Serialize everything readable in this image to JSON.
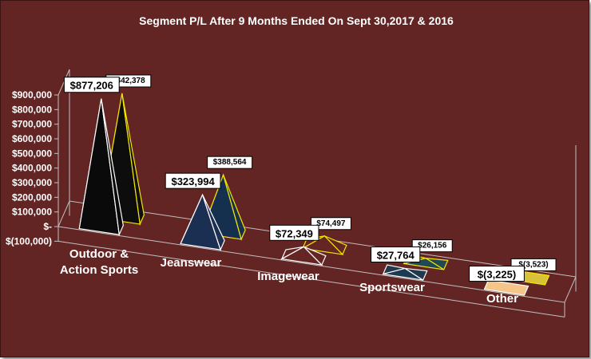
{
  "chart_data": {
    "type": "bar",
    "shape": "3d-pyramid",
    "title": "Segment P/L After 9 Months Ended On Sept 30,2017 & 2016",
    "categories": [
      [
        "Outdoor &",
        "Action Sports"
      ],
      [
        "Jeanswear"
      ],
      [
        "Imagewear"
      ],
      [
        "Sportswear"
      ],
      [
        "Other"
      ]
    ],
    "series": [
      {
        "values": [
          877206,
          323994,
          72349,
          27764,
          -3225
        ],
        "labels": [
          "$877,206",
          "$323,994",
          "$72,349",
          "$27,764",
          "$(3,225)"
        ],
        "colors": [
          "#0a0a0a",
          "#1b2f52",
          "#652523",
          "#1c3a52",
          "#f5c58a"
        ],
        "edge_colors": [
          "#ffffff",
          "#ffffff",
          "#ffffff",
          "#ffffff",
          "#ffffff"
        ]
      },
      {
        "values": [
          842378,
          388564,
          74497,
          26156,
          -3523
        ],
        "labels": [
          "$842,378",
          "$388,564",
          "$74,497",
          "$26,156",
          "$(3,523)"
        ],
        "colors": [
          "#0d0d0d",
          "#15304f",
          "#652523",
          "#1f4a55",
          "#d8c23a"
        ],
        "edge_colors": [
          "#f2e600",
          "#f2e600",
          "#f2e600",
          "#f2e600",
          "#f2e600"
        ]
      }
    ],
    "yaxis": {
      "min": -100000,
      "max": 900000,
      "step": 100000,
      "tick_labels": [
        "$(100,000)",
        "$-",
        "$100,000",
        "$200,000",
        "$300,000",
        "$400,000",
        "$500,000",
        "$600,000",
        "$700,000",
        "$800,000",
        "$900,000"
      ]
    },
    "grid": false,
    "legend": "none",
    "colors": {
      "background": "#632523",
      "axis_lines": "#c0c0c0",
      "label_box": "#ffffff"
    }
  }
}
